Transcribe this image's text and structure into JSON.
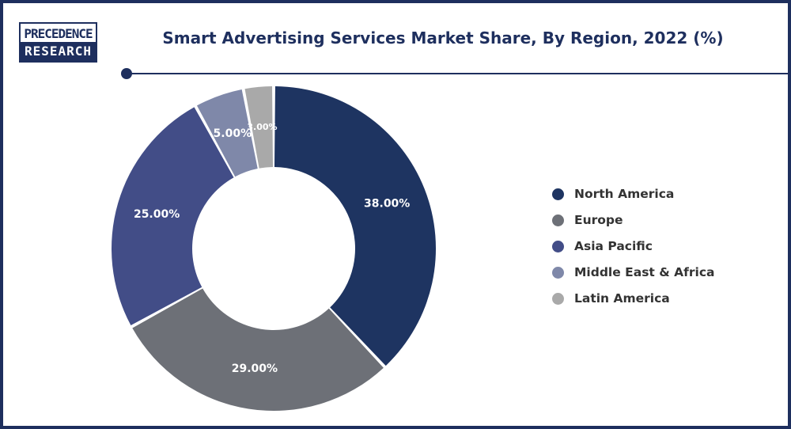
{
  "logo": {
    "line1": "PRECEDENCE",
    "line2": "RESEARCH"
  },
  "chart_data": {
    "type": "pie",
    "variant": "donut",
    "title": "Smart Advertising Services Market Share, By Region, 2022 (%)",
    "categories": [
      "North America",
      "Europe",
      "Asia Pacific",
      "Middle East & Africa",
      "Latin America"
    ],
    "values": [
      38,
      29,
      25,
      5,
      3
    ],
    "value_labels": [
      "38.00%",
      "29.00%",
      "25.00%",
      "5.00%",
      "3.00%"
    ],
    "colors": [
      "#1e3461",
      "#6d7077",
      "#424d87",
      "#7f88a9",
      "#a9a9a9"
    ],
    "legend_position": "right"
  }
}
